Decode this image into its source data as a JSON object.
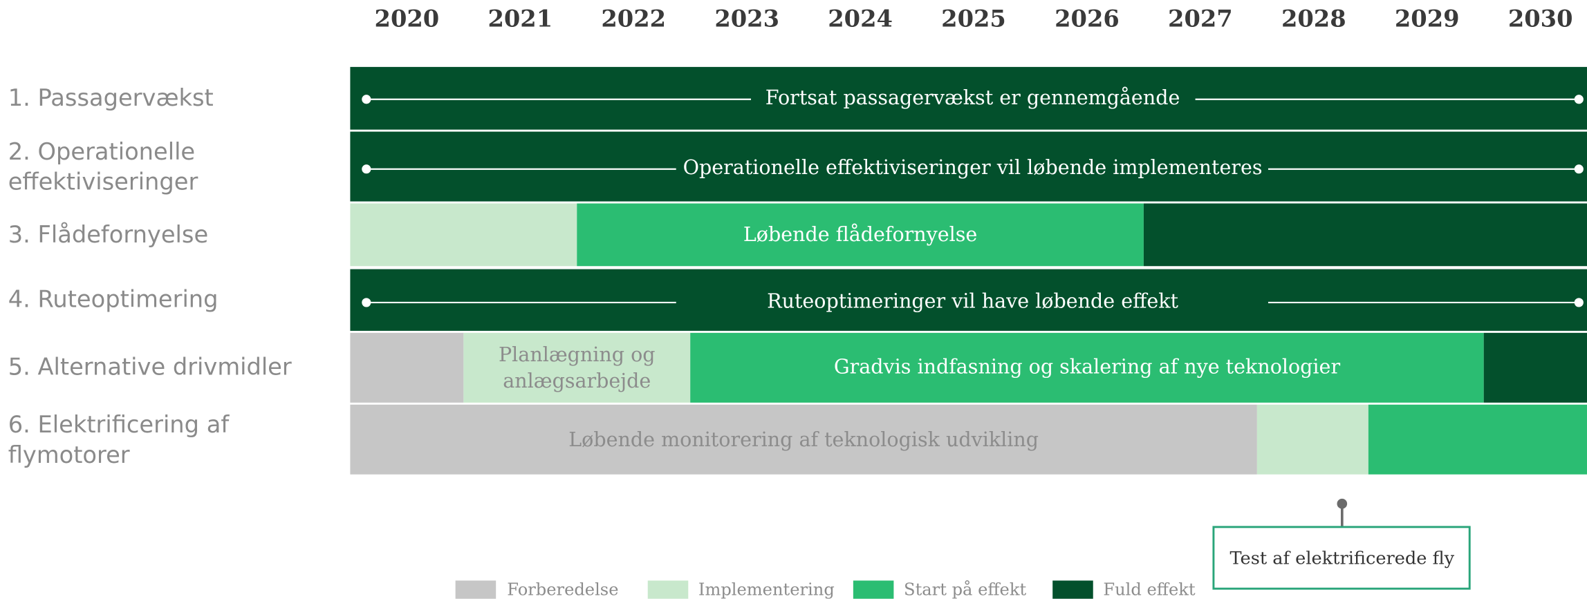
{
  "years": [
    "2020",
    "2021",
    "2022",
    "2023",
    "2024",
    "2025",
    "2026",
    "2027",
    "2028",
    "2029",
    "2030"
  ],
  "rows": [
    {
      "label": [
        "1. Passagervækst"
      ],
      "texts": [
        [
          "Fortsat passagervækst er gennemgående"
        ]
      ]
    },
    {
      "label": [
        "2. Operationelle",
        "effektiviseringer"
      ],
      "texts": [
        [
          "Operationelle effektiviseringer vil løbende implementeres"
        ]
      ]
    },
    {
      "label": [
        "3. Flådefornyelse"
      ],
      "texts": [
        [
          "Løbende flådefornyelse"
        ]
      ]
    },
    {
      "label": [
        "4. Ruteoptimering"
      ],
      "texts": [
        [
          "Ruteoptimeringer vil have løbende effekt"
        ]
      ]
    },
    {
      "label": [
        "5. Alternative drivmidler"
      ],
      "texts": [
        [
          "Planlægning og",
          "anlægsarbejde"
        ],
        [
          "Gradvis indfasning og skalering af nye teknologier"
        ]
      ]
    },
    {
      "label": [
        "6. Elektrificering af",
        "flymotorer"
      ],
      "texts": [
        [
          "Løbende monitorering af teknologisk udvikling"
        ]
      ]
    }
  ],
  "callout": "Test af elektrificerede fly",
  "legend": [
    "Forberedelse",
    "Implementering",
    "Start på effekt",
    "Fuld effekt"
  ]
}
